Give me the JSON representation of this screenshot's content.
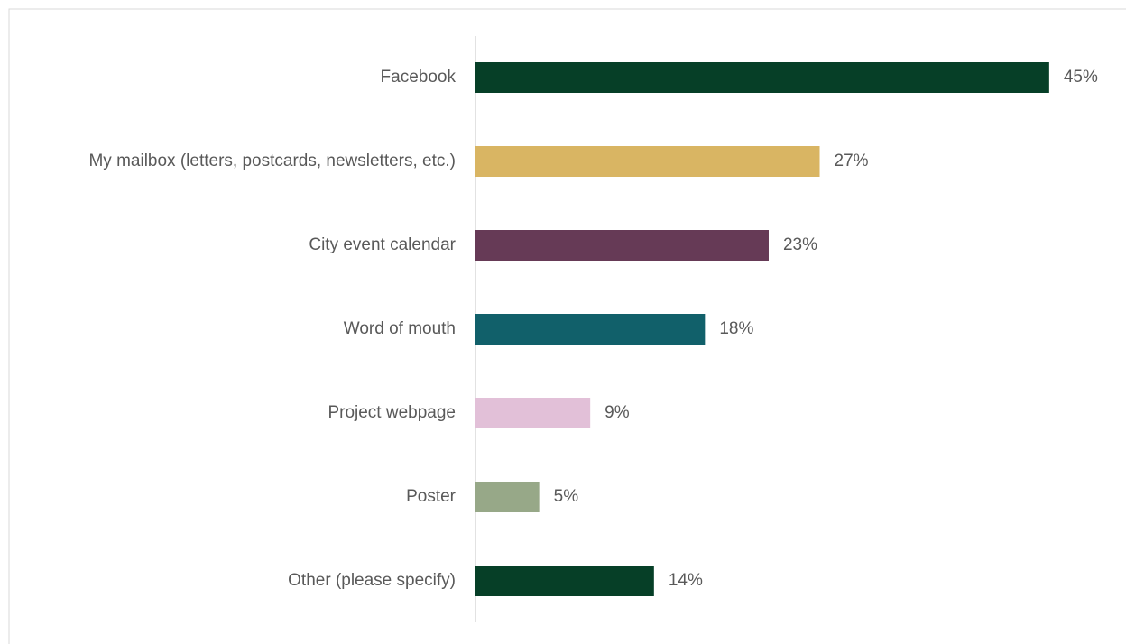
{
  "chart_data": {
    "type": "bar",
    "orientation": "horizontal",
    "categories": [
      "Facebook",
      "My mailbox (letters, postcards, newsletters, etc.)",
      "City event calendar",
      "Word of mouth",
      "Project webpage",
      "Poster",
      "Other (please specify)"
    ],
    "values": [
      45,
      27,
      23,
      18,
      9,
      5,
      14
    ],
    "value_labels": [
      "45%",
      "27%",
      "23%",
      "18%",
      "9%",
      "5%",
      "14%"
    ],
    "colors": [
      "#063f27",
      "#d9b563",
      "#663a56",
      "#11606a",
      "#e2c0d8",
      "#97a888",
      "#063f27"
    ]
  }
}
